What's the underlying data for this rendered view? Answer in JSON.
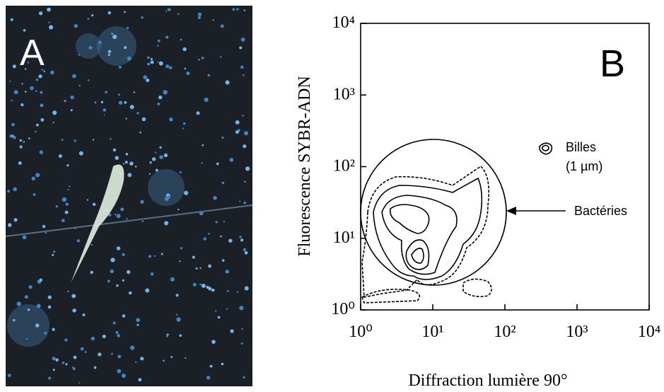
{
  "photo_label": "A",
  "chart_data": {
    "type": "contour",
    "panel_label": "B",
    "x_label": "Diffraction lumière 90°",
    "y_label": "Fluorescence SYBR-ADN",
    "log_x": true,
    "log_y": true,
    "xlim": [
      1,
      10000
    ],
    "ylim": [
      1,
      10000
    ],
    "xticks": [
      {
        "value": 1,
        "label": "10⁰"
      },
      {
        "value": 10,
        "label": "10¹"
      },
      {
        "value": 100,
        "label": "10²"
      },
      {
        "value": 1000,
        "label": "10³"
      },
      {
        "value": 10000,
        "label": "10⁴"
      }
    ],
    "yticks": [
      {
        "value": 1,
        "label": "10⁰"
      },
      {
        "value": 10,
        "label": "10¹"
      },
      {
        "value": 100,
        "label": "10²"
      },
      {
        "value": 1000,
        "label": "10³"
      },
      {
        "value": 10000,
        "label": "10⁴"
      }
    ],
    "annotations": [
      "Billes",
      "(1 µm)",
      "Bactéries"
    ]
  }
}
